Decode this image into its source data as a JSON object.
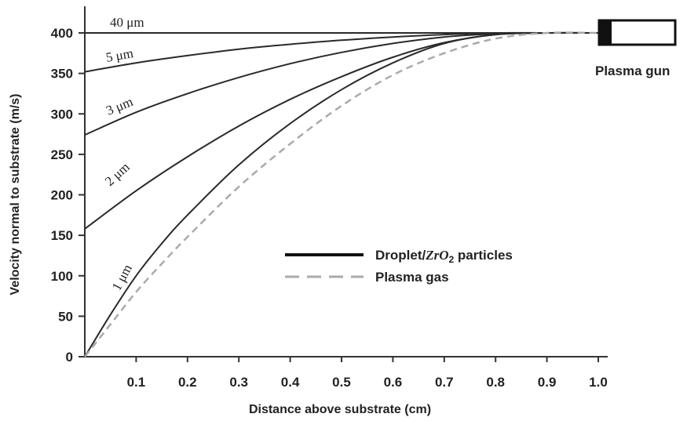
{
  "chart_data": {
    "type": "line",
    "xlabel": "Distance above substrate (cm)",
    "ylabel": "Velocity normal to substrate (m/s)",
    "xlim": [
      0.0,
      1.0
    ],
    "ylim": [
      0,
      400
    ],
    "xticks": [
      "0.1",
      "0.2",
      "0.3",
      "0.4",
      "0.5",
      "0.6",
      "0.7",
      "0.8",
      "0.9",
      "1.0"
    ],
    "yticks": [
      "0",
      "50",
      "100",
      "150",
      "200",
      "250",
      "300",
      "350",
      "400"
    ],
    "series": [
      {
        "name": "40 μm",
        "group": "droplet",
        "x": [
          0.0,
          0.2,
          0.4,
          0.6,
          0.8,
          1.0
        ],
        "y": [
          400,
          400,
          400,
          400,
          400,
          400
        ]
      },
      {
        "name": "5 μm",
        "group": "droplet",
        "x": [
          0.0,
          0.1,
          0.2,
          0.3,
          0.4,
          0.5,
          0.6,
          0.7,
          0.8,
          0.9,
          1.0
        ],
        "y": [
          352,
          363,
          372,
          380,
          386,
          391,
          395,
          398,
          400,
          400,
          400
        ]
      },
      {
        "name": "3 μm",
        "group": "droplet",
        "x": [
          0.0,
          0.1,
          0.2,
          0.3,
          0.4,
          0.5,
          0.6,
          0.7,
          0.8,
          0.9,
          1.0
        ],
        "y": [
          274,
          302,
          325,
          345,
          362,
          376,
          387,
          395,
          399,
          400,
          400
        ]
      },
      {
        "name": "2 μm",
        "group": "droplet",
        "x": [
          0.0,
          0.1,
          0.2,
          0.3,
          0.4,
          0.5,
          0.6,
          0.7,
          0.8,
          0.9,
          1.0
        ],
        "y": [
          158,
          205,
          247,
          285,
          318,
          346,
          370,
          388,
          398,
          400,
          400
        ]
      },
      {
        "name": "1 μm",
        "group": "droplet",
        "x": [
          0.0,
          0.05,
          0.1,
          0.15,
          0.2,
          0.3,
          0.4,
          0.5,
          0.6,
          0.7,
          0.8,
          0.9,
          1.0
        ],
        "y": [
          0,
          52,
          100,
          140,
          175,
          237,
          288,
          330,
          363,
          387,
          398,
          400,
          400
        ]
      },
      {
        "name": "Plasma gas",
        "group": "plasma",
        "x": [
          0.0,
          0.05,
          0.1,
          0.15,
          0.2,
          0.3,
          0.4,
          0.5,
          0.6,
          0.7,
          0.8,
          0.9,
          1.0
        ],
        "y": [
          0,
          40,
          80,
          115,
          148,
          210,
          263,
          310,
          348,
          375,
          393,
          400,
          400
        ]
      }
    ],
    "legend": {
      "placement": "center-right",
      "entries": [
        {
          "label_prefix": "Droplet/",
          "label_formula": "ZrO",
          "label_sub": "2",
          "label_suffix": " particles",
          "style": "solid"
        },
        {
          "label": "Plasma gas",
          "style": "dashed"
        }
      ]
    },
    "annotation": "Plasma gun",
    "colors": {
      "droplet": "#2a2a2a",
      "plasma": "#aaaaaa",
      "axis": "#333333"
    },
    "grid": false
  }
}
